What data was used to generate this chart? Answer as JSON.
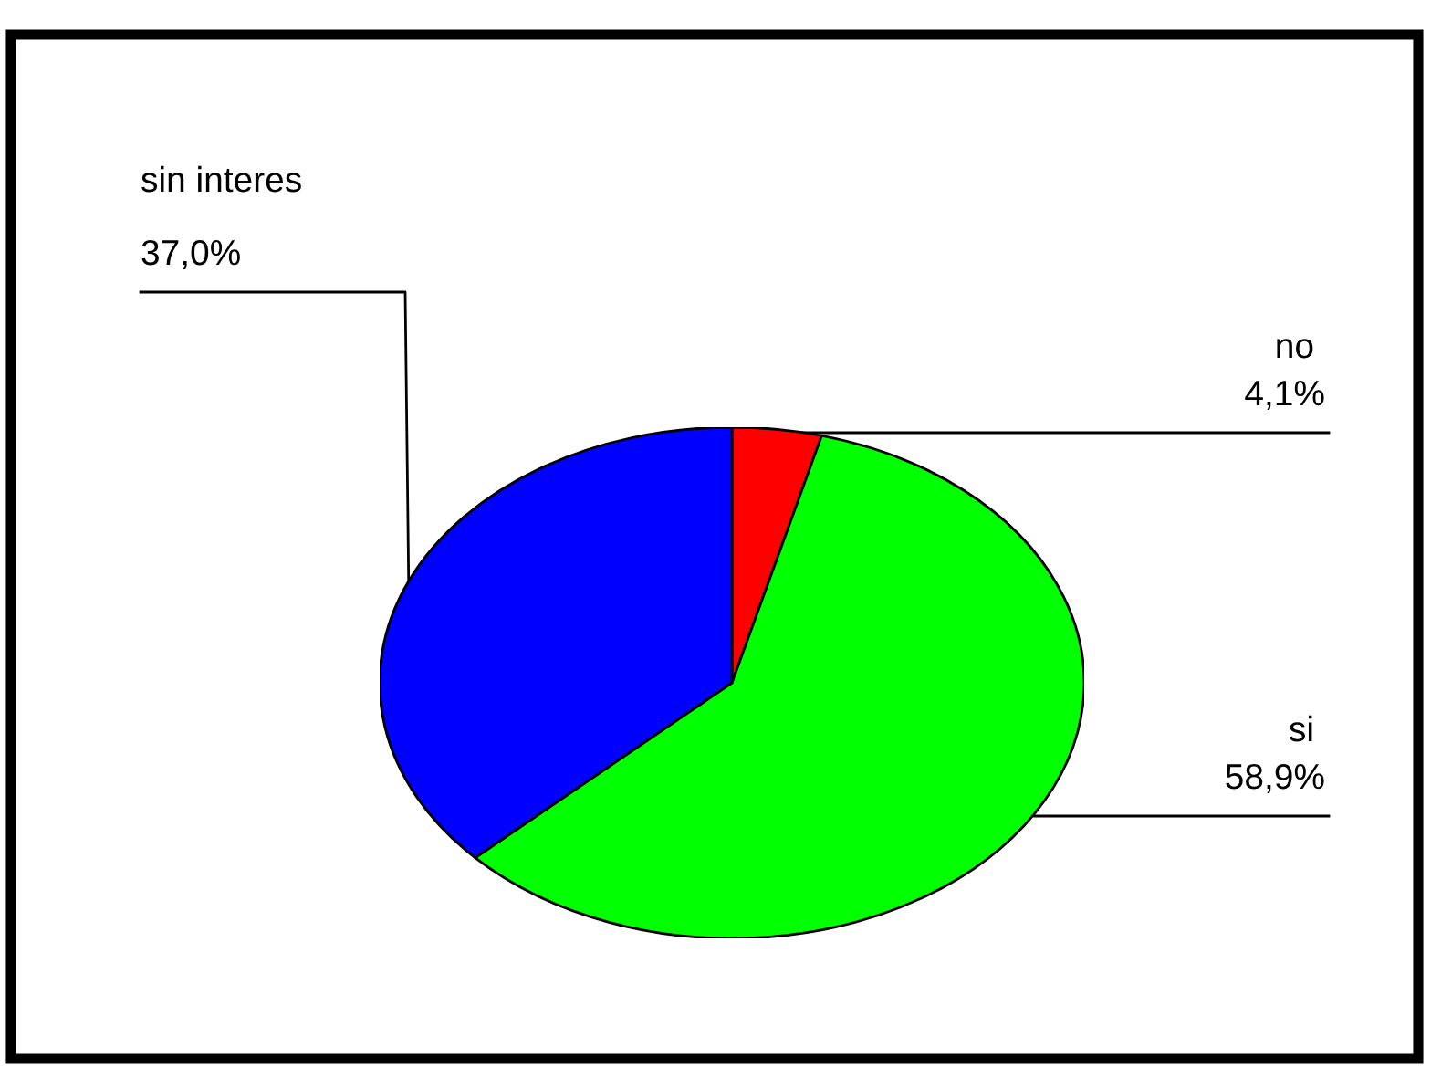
{
  "chart_data": {
    "type": "pie",
    "categories": [
      "no",
      "si",
      "sin interes"
    ],
    "values": [
      4.1,
      58.9,
      37.0
    ],
    "colors": [
      "#ff0000",
      "#00ff00",
      "#0000ff"
    ],
    "value_labels": [
      "4,1%",
      "58,9%",
      "37,0%"
    ],
    "legend": false
  }
}
